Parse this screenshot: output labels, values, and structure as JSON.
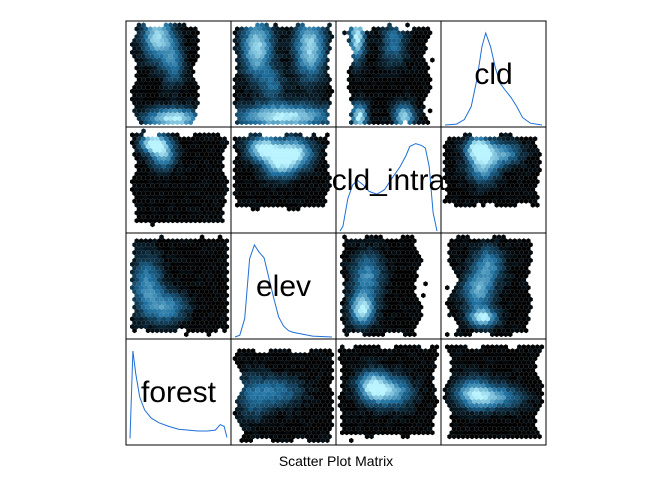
{
  "chart_data": {
    "type": "scatter",
    "subtype": "scatter-plot-matrix (hexbin density)",
    "title": "Scatter Plot Matrix",
    "variables": [
      "forest",
      "elev",
      "cld_intra",
      "cld"
    ],
    "layout": "4x4 matrix; variable names and density curves on the anti-diagonal",
    "colors": {
      "density_low": "#000000",
      "density_mid": "#1e6f9f",
      "density_high": "#b8f3ff",
      "density_curve": "#1f6fd6",
      "frame": "#000000"
    },
    "density_curves": {
      "forest": {
        "x": [
          0,
          0.03,
          0.06,
          0.1,
          0.15,
          0.22,
          0.3,
          0.4,
          0.5,
          0.6,
          0.7,
          0.8,
          0.88,
          0.93,
          0.97,
          1
        ],
        "y": [
          0.05,
          1,
          0.75,
          0.5,
          0.36,
          0.27,
          0.22,
          0.18,
          0.15,
          0.14,
          0.13,
          0.13,
          0.14,
          0.2,
          0.18,
          0.06
        ]
      },
      "elev": {
        "x": [
          0,
          0.05,
          0.1,
          0.15,
          0.2,
          0.25,
          0.3,
          0.35,
          0.4,
          0.45,
          0.5,
          0.55,
          0.6,
          0.7,
          0.8,
          1
        ],
        "y": [
          0,
          0.02,
          0.2,
          0.85,
          1,
          0.92,
          0.86,
          0.64,
          0.42,
          0.22,
          0.12,
          0.07,
          0.05,
          0.03,
          0.01,
          0
        ]
      },
      "cld_intra": {
        "x": [
          0,
          0.03,
          0.08,
          0.13,
          0.18,
          0.24,
          0.3,
          0.38,
          0.46,
          0.54,
          0.62,
          0.68,
          0.72,
          0.78,
          0.84,
          0.88,
          0.92,
          0.96,
          1
        ],
        "y": [
          0,
          0.05,
          0.35,
          0.5,
          0.55,
          0.5,
          0.43,
          0.4,
          0.45,
          0.58,
          0.7,
          0.82,
          0.92,
          0.95,
          0.93,
          0.9,
          0.7,
          0.2,
          0
        ]
      },
      "cld": {
        "x": [
          0,
          0.12,
          0.2,
          0.27,
          0.33,
          0.38,
          0.42,
          0.47,
          0.52,
          0.57,
          0.62,
          0.68,
          0.74,
          0.8,
          0.88,
          1
        ],
        "y": [
          0,
          0.01,
          0.06,
          0.2,
          0.5,
          0.85,
          1,
          0.85,
          0.62,
          0.45,
          0.38,
          0.3,
          0.2,
          0.08,
          0.02,
          0
        ]
      }
    },
    "off_diagonal_blobs": {
      "forest~elev": [
        [
          0.22,
          0.9,
          0.05,
          0.09,
          1
        ],
        [
          0.2,
          0.15,
          0.05,
          0.15,
          1
        ],
        [
          0.65,
          0.9,
          0.07,
          0.08,
          0.9
        ],
        [
          0.55,
          0.2,
          0.08,
          0.15,
          0.5
        ]
      ],
      "forest~cld_intra": [
        [
          0.5,
          0.9,
          0.3,
          0.08,
          1
        ],
        [
          0.25,
          0.25,
          0.1,
          0.2,
          0.9
        ],
        [
          0.75,
          0.25,
          0.1,
          0.2,
          0.9
        ],
        [
          0.4,
          0.6,
          0.08,
          0.1,
          0.4
        ]
      ],
      "forest~cld": [
        [
          0.45,
          0.92,
          0.18,
          0.07,
          1
        ],
        [
          0.3,
          0.15,
          0.1,
          0.15,
          0.9
        ],
        [
          0.45,
          0.4,
          0.07,
          0.15,
          0.5
        ]
      ],
      "elev~forest": [
        [
          0.35,
          0.2,
          0.08,
          0.07,
          1
        ],
        [
          0.4,
          0.35,
          0.1,
          0.12,
          0.8
        ],
        [
          0.6,
          0.25,
          0.12,
          0.08,
          0.6
        ]
      ],
      "elev~cld_intra": [
        [
          0.3,
          0.2,
          0.1,
          0.08,
          1
        ],
        [
          0.6,
          0.25,
          0.12,
          0.1,
          1
        ],
        [
          0.45,
          0.35,
          0.1,
          0.1,
          0.7
        ]
      ],
      "elev~cld": [
        [
          0.35,
          0.25,
          0.08,
          0.1,
          0.8
        ],
        [
          0.25,
          0.15,
          0.08,
          0.06,
          1
        ]
      ],
      "cld_intra~forest": [
        [
          0.4,
          0.8,
          0.09,
          0.06,
          1
        ],
        [
          0.35,
          0.55,
          0.1,
          0.12,
          0.7
        ],
        [
          0.45,
          0.3,
          0.1,
          0.12,
          0.6
        ]
      ],
      "cld_intra~elev": [
        [
          0.25,
          0.72,
          0.08,
          0.1,
          1
        ],
        [
          0.3,
          0.4,
          0.1,
          0.15,
          0.6
        ]
      ],
      "cld_intra~cld": [
        [
          0.4,
          0.7,
          0.12,
          0.1,
          0.6
        ],
        [
          0.2,
          0.5,
          0.1,
          0.2,
          0.6
        ]
      ],
      "cld~forest": [
        [
          0.5,
          0.55,
          0.18,
          0.08,
          0.7
        ],
        [
          0.3,
          0.5,
          0.12,
          0.1,
          0.6
        ]
      ],
      "cld~elev": [
        [
          0.35,
          0.45,
          0.1,
          0.1,
          1
        ],
        [
          0.55,
          0.5,
          0.12,
          0.1,
          0.7
        ]
      ],
      "cld~cld_intra": [
        [
          0.45,
          0.5,
          0.15,
          0.1,
          0.5
        ],
        [
          0.2,
          0.55,
          0.1,
          0.15,
          0.4
        ]
      ]
    },
    "off_diagonal_extents": {
      "forest~elev": [
        0.1,
        0.9,
        0.05,
        0.98,
        0.2,
        0.9
      ],
      "forest~cld_intra": [
        0.05,
        0.95,
        0.05,
        0.98,
        0,
        0
      ],
      "forest~cld": [
        0.05,
        0.65,
        0.05,
        0.98,
        0.45,
        0.9
      ],
      "elev~forest": [
        0.05,
        0.95,
        0.1,
        0.75,
        0.3,
        0.35
      ],
      "elev~cld_intra": [
        0.05,
        0.95,
        0.07,
        0.75,
        0.5,
        0.5
      ],
      "elev~cld": [
        0.05,
        0.92,
        0.05,
        0.9,
        0.6,
        0.85
      ],
      "cld_intra~forest": [
        0.1,
        0.85,
        0.05,
        0.95,
        0.55,
        0.5
      ],
      "cld_intra~elev": [
        0.05,
        0.8,
        0.05,
        0.95,
        0.7,
        0.7
      ],
      "cld_intra~cld": [
        0.05,
        0.98,
        0.05,
        0.95,
        0.25,
        0.4
      ],
      "cld~forest": [
        0.05,
        0.95,
        0.05,
        0.95,
        0.2,
        0.3
      ],
      "cld~elev": [
        0.05,
        0.95,
        0.05,
        0.9,
        0.4,
        0.5
      ],
      "cld~cld_intra": [
        0.05,
        0.97,
        0.1,
        0.95,
        0.25,
        0.6
      ]
    },
    "grid": false,
    "legend": "none"
  }
}
